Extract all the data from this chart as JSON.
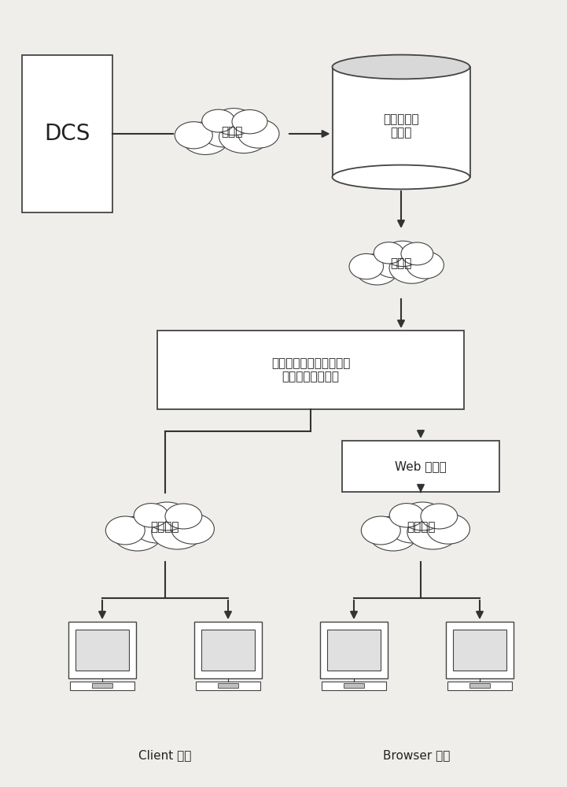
{
  "bg_color": "#f0eeea",
  "box_color": "#ffffff",
  "box_edge_color": "#444444",
  "line_color": "#333333",
  "text_color": "#222222",
  "dcs_label": "DCS",
  "realtime_label": "实时数据库\n服务器",
  "lan1_label": "局域网",
  "lan2_label": "局域网",
  "safety_label": "安全运行指导系统服务器\n（管理员服务器）",
  "web_label": "Web 服务器",
  "public1_label": "公共网络",
  "public2_label": "公共网络",
  "client_label": "Client 用户",
  "browser_label": "Browser 用户"
}
